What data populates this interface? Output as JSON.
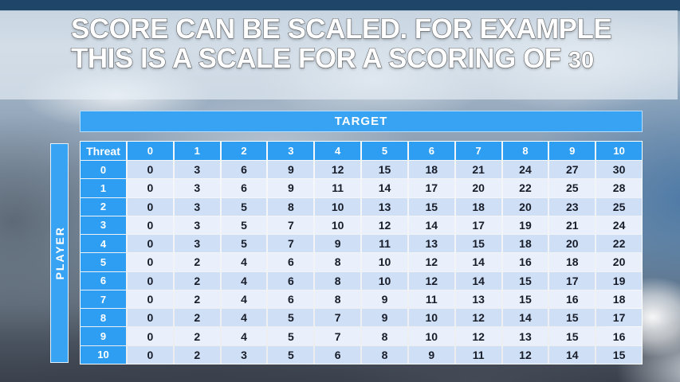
{
  "slide": {
    "title_line1": "SCORE CAN BE SCALED. FOR EXAMPLE",
    "title_line2": "THIS IS A SCALE FOR A SCORING OF",
    "title_scale_value": "30"
  },
  "table": {
    "target_label": "TARGET",
    "player_label": "PLAYER",
    "threat_label": "Threat",
    "column_headers": [
      "0",
      "1",
      "2",
      "3",
      "4",
      "5",
      "6",
      "7",
      "8",
      "9",
      "10"
    ],
    "rows": [
      {
        "header": "0",
        "values": [
          0,
          3,
          6,
          9,
          12,
          15,
          18,
          21,
          24,
          27,
          30
        ]
      },
      {
        "header": "1",
        "values": [
          0,
          3,
          6,
          9,
          11,
          14,
          17,
          20,
          22,
          25,
          28
        ]
      },
      {
        "header": "2",
        "values": [
          0,
          3,
          5,
          8,
          10,
          13,
          15,
          18,
          20,
          23,
          25
        ]
      },
      {
        "header": "3",
        "values": [
          0,
          3,
          5,
          7,
          10,
          12,
          14,
          17,
          19,
          21,
          24
        ]
      },
      {
        "header": "4",
        "values": [
          0,
          3,
          5,
          7,
          9,
          11,
          13,
          15,
          18,
          20,
          22
        ]
      },
      {
        "header": "5",
        "values": [
          0,
          2,
          4,
          6,
          8,
          10,
          12,
          14,
          16,
          18,
          20
        ]
      },
      {
        "header": "6",
        "values": [
          0,
          2,
          4,
          6,
          8,
          10,
          12,
          14,
          15,
          17,
          19
        ]
      },
      {
        "header": "7",
        "values": [
          0,
          2,
          4,
          6,
          8,
          9,
          11,
          13,
          15,
          16,
          18
        ]
      },
      {
        "header": "8",
        "values": [
          0,
          2,
          4,
          5,
          7,
          9,
          10,
          12,
          14,
          15,
          17
        ]
      },
      {
        "header": "9",
        "values": [
          0,
          2,
          4,
          5,
          7,
          8,
          10,
          12,
          13,
          15,
          16
        ]
      },
      {
        "header": "10",
        "values": [
          0,
          2,
          3,
          5,
          6,
          8,
          9,
          11,
          12,
          14,
          15
        ]
      }
    ]
  },
  "colors": {
    "bar_blue": "#38A2F3",
    "table_header_blue": "#2E9EF3",
    "row_band_dark": "#CEDFF6",
    "row_band_light": "#E9EFFB",
    "value_text": "#171C28",
    "header_text": "#FFFFFF"
  }
}
